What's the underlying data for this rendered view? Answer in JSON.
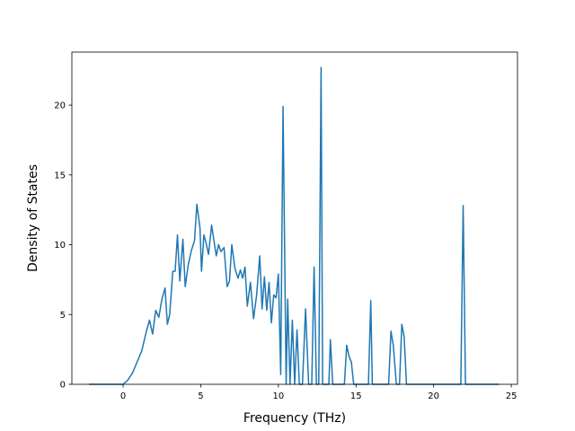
{
  "chart_data": {
    "type": "line",
    "title": "",
    "xlabel": "Frequency (THz)",
    "ylabel": "Density of States",
    "xlim": [
      -3.3,
      25.4
    ],
    "ylim": [
      0,
      23.8
    ],
    "xticks": [
      0,
      5,
      10,
      15,
      20,
      25
    ],
    "yticks": [
      0,
      5,
      10,
      15,
      20
    ],
    "grid": false,
    "legend": "none",
    "series": [
      {
        "color": "#1f77b4",
        "x": [
          -2.2,
          -1.5,
          -0.5,
          0.0,
          0.3,
          0.6,
          0.9,
          1.2,
          1.5,
          1.7,
          1.9,
          2.1,
          2.3,
          2.5,
          2.7,
          2.85,
          3.0,
          3.2,
          3.35,
          3.5,
          3.65,
          3.85,
          4.0,
          4.2,
          4.4,
          4.6,
          4.75,
          4.95,
          5.05,
          5.2,
          5.35,
          5.5,
          5.7,
          5.85,
          6.0,
          6.15,
          6.3,
          6.5,
          6.7,
          6.85,
          7.0,
          7.2,
          7.4,
          7.55,
          7.7,
          7.85,
          8.0,
          8.2,
          8.4,
          8.6,
          8.8,
          8.95,
          9.1,
          9.25,
          9.4,
          9.55,
          9.7,
          9.85,
          10.0,
          10.15,
          10.3,
          10.5,
          10.6,
          10.75,
          10.9,
          11.05,
          11.2,
          11.35,
          11.55,
          11.75,
          11.95,
          12.15,
          12.3,
          12.45,
          12.6,
          12.75,
          12.85,
          12.95,
          13.1,
          13.25,
          13.35,
          13.5,
          13.65,
          13.85,
          14.05,
          14.25,
          14.4,
          14.55,
          14.7,
          14.85,
          15.0,
          15.2,
          15.5,
          15.8,
          15.95,
          16.05,
          16.15,
          16.3,
          16.6,
          16.9,
          17.1,
          17.25,
          17.4,
          17.6,
          17.8,
          17.95,
          18.1,
          18.25,
          18.6,
          19.0,
          20.0,
          21.0,
          21.6,
          21.75,
          21.9,
          22.05,
          22.2,
          23.0,
          24.2
        ],
        "values": [
          0,
          0,
          0,
          0,
          0.3,
          0.8,
          1.6,
          2.4,
          3.8,
          4.6,
          3.6,
          5.3,
          4.8,
          6.1,
          6.9,
          4.3,
          5.0,
          8.1,
          8.1,
          10.7,
          7.4,
          10.4,
          7.0,
          8.6,
          9.6,
          10.3,
          12.9,
          11.2,
          8.1,
          10.7,
          10.1,
          9.3,
          11.4,
          10.3,
          9.2,
          10.0,
          9.5,
          9.8,
          7.0,
          7.4,
          10.0,
          8.3,
          7.6,
          8.2,
          7.6,
          8.4,
          5.6,
          7.3,
          4.7,
          6.4,
          9.2,
          5.4,
          7.7,
          5.3,
          7.3,
          4.4,
          6.4,
          6.2,
          7.9,
          0.7,
          19.9,
          0,
          6.1,
          0,
          4.6,
          0,
          3.9,
          0,
          0,
          5.4,
          0,
          0,
          8.4,
          0,
          0,
          22.7,
          0,
          0,
          0,
          0,
          3.2,
          0,
          0,
          0,
          0,
          0,
          2.8,
          2.0,
          1.6,
          0,
          0,
          0,
          0,
          0,
          6.0,
          0,
          0,
          0,
          0,
          0,
          0,
          3.8,
          2.8,
          0,
          0,
          4.3,
          3.4,
          0,
          0,
          0,
          0,
          0,
          0,
          0,
          12.8,
          0,
          0,
          0,
          0
        ]
      }
    ]
  }
}
